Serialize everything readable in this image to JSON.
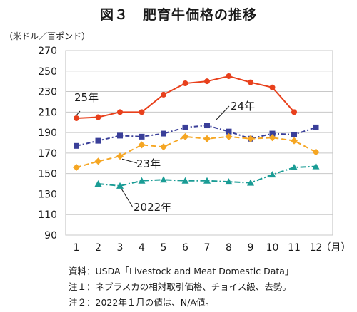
{
  "title": "図３　肥育牛価格の推移",
  "ylabel": "（米ドル／百ポンド）",
  "notes": [
    "資料：USDA「Livestock and Meat Domestic Data」",
    "注１：ネブラスカの相対取引価格、チョイス級、去勢。",
    "注２：2022年１月の値は、N/A値。"
  ],
  "chart_data": {
    "type": "line",
    "title": "図３　肥育牛価格の推移",
    "ylabel": "（米ドル／百ポンド）",
    "xlabel": "（月）",
    "x": [
      1,
      2,
      3,
      4,
      5,
      6,
      7,
      8,
      9,
      10,
      11,
      12
    ],
    "ylim": [
      90,
      270
    ],
    "yticks": [
      90,
      110,
      130,
      150,
      170,
      190,
      210,
      230,
      250,
      270
    ],
    "grid": true,
    "series": [
      {
        "name": "25年",
        "color": "#e8401c",
        "marker": "circle",
        "values": [
          204,
          205,
          210,
          210,
          227,
          238,
          240,
          245,
          239,
          234,
          210,
          null
        ]
      },
      {
        "name": "24年",
        "color": "#3a3f99",
        "marker": "square",
        "values": [
          177,
          182,
          187,
          186,
          189,
          195,
          197,
          191,
          184,
          189,
          188,
          195
        ]
      },
      {
        "name": "23年",
        "color": "#f5a623",
        "marker": "diamond",
        "values": [
          156,
          162,
          167,
          178,
          176,
          186,
          184,
          186,
          184,
          185,
          182,
          171
        ]
      },
      {
        "name": "2022年",
        "color": "#1a9c95",
        "marker": "triangle",
        "values": [
          null,
          140,
          138,
          143,
          144,
          143,
          143,
          142,
          141,
          149,
          156,
          157
        ]
      }
    ]
  }
}
